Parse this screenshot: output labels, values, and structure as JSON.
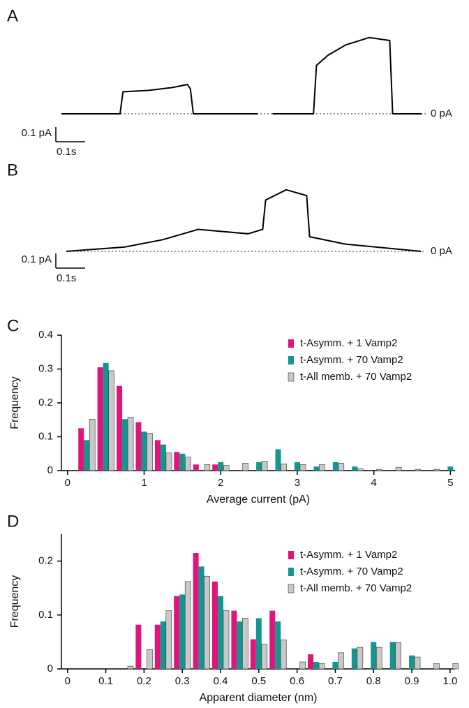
{
  "chart_data": [
    {
      "type": "line",
      "panel": "A",
      "x": [
        0,
        0.2,
        0.21,
        0.3,
        0.38,
        0.43,
        0.44,
        0.45,
        0.67,
        0.7,
        0.72,
        0.86,
        0.87,
        0.91,
        0.97,
        1.05,
        1.12,
        1.13,
        1.23
      ],
      "values": [
        0,
        0,
        0.15,
        0.16,
        0.18,
        0.2,
        0.17,
        0,
        0,
        null,
        0,
        0,
        0.33,
        0.4,
        0.47,
        0.52,
        0.5,
        0,
        0
      ],
      "color": "#000000",
      "baseline": {
        "value": 0,
        "label": "0 pA"
      },
      "scalebar": {
        "x": 0.1,
        "x_label": "0.1s",
        "y": 0.1,
        "y_label": "0.1 pA"
      }
    },
    {
      "type": "line",
      "panel": "B",
      "x": [
        0,
        0.2,
        0.33,
        0.45,
        0.62,
        0.67,
        0.68,
        0.75,
        0.82,
        0.83,
        0.95,
        1.21
      ],
      "values": [
        0,
        0.03,
        0.08,
        0.15,
        0.12,
        0.15,
        0.35,
        0.42,
        0.38,
        0.1,
        0.05,
        0
      ],
      "color": "#000000",
      "baseline": {
        "value": 0,
        "label": "0 pA"
      },
      "scalebar": {
        "x": 0.1,
        "x_label": "0.1s",
        "y": 0.1,
        "y_label": "0.1 pA"
      }
    },
    {
      "type": "bar",
      "panel": "C",
      "x_label": "Average current (pA)",
      "y_label": "Frequency",
      "x": [
        0.25,
        0.5,
        0.75,
        1.0,
        1.25,
        1.5,
        1.75,
        2.0,
        2.25,
        2.5,
        2.75,
        3.0,
        3.25,
        3.5,
        3.75,
        4.0,
        4.25,
        4.5,
        4.75,
        5.0
      ],
      "series": [
        {
          "name": "t-Asymm. + 1 Vamp2",
          "color": "#e0157a",
          "values": [
            0.125,
            0.305,
            0.25,
            0.143,
            0.09,
            0.055,
            0.018,
            0.018,
            0,
            0,
            0,
            0,
            0,
            0,
            0,
            0,
            0,
            0,
            0,
            0
          ]
        },
        {
          "name": "t-Asymm. + 70 Vamp2",
          "color": "#14958f",
          "values": [
            0.09,
            0.318,
            0.152,
            0.115,
            0.077,
            0.05,
            0,
            0.025,
            0,
            0.025,
            0.063,
            0.025,
            0.012,
            0.025,
            0.012,
            0,
            0,
            0,
            0,
            0.012
          ]
        },
        {
          "name": "t-All memb. + 70 Vamp2",
          "color": "#c8c8c8",
          "values": [
            0.152,
            0.295,
            0.158,
            0.11,
            0.052,
            0.04,
            0.018,
            0.015,
            0.022,
            0.028,
            0.02,
            0.018,
            0.018,
            0.022,
            0.006,
            0.004,
            0.01,
            0.004,
            0.004,
            0
          ]
        }
      ],
      "xlim": [
        -0.08,
        5.06
      ],
      "xticks": [
        0,
        1,
        2,
        3,
        4,
        5
      ],
      "ylim": [
        0,
        0.4
      ],
      "yticks": [
        0,
        0.1,
        0.2,
        0.3,
        0.4
      ],
      "legend": "upper right"
    },
    {
      "type": "bar",
      "panel": "D",
      "x_label": "Apparent diameter (nm)",
      "y_label": "Frequency",
      "x": [
        0.15,
        0.2,
        0.25,
        0.3,
        0.35,
        0.4,
        0.45,
        0.5,
        0.55,
        0.6,
        0.65,
        0.7,
        0.75,
        0.8,
        0.85,
        0.9,
        0.95,
        1.0
      ],
      "series": [
        {
          "name": "t-Asymm. + 1 Vamp2",
          "color": "#e0157a",
          "values": [
            0,
            0.082,
            0.082,
            0.135,
            0.215,
            0.162,
            0.108,
            0.055,
            0.108,
            0,
            0.027,
            0,
            0,
            0,
            0,
            0,
            0,
            0
          ]
        },
        {
          "name": "t-Asymm. + 70 Vamp2",
          "color": "#14958f",
          "values": [
            0,
            0,
            0.088,
            0.138,
            0.19,
            0.135,
            0.088,
            0.094,
            0.088,
            0,
            0.013,
            0.013,
            0.038,
            0.05,
            0.05,
            0.025,
            0,
            0
          ]
        },
        {
          "name": "t-All memb. + 70 Vamp2",
          "color": "#c8c8c8",
          "values": [
            0.005,
            0.036,
            0.108,
            0.162,
            0.172,
            0.108,
            0.094,
            0.046,
            0.054,
            0.013,
            0.01,
            0.03,
            0.04,
            0.04,
            0.049,
            0.022,
            0.01,
            0.01
          ]
        }
      ],
      "xlim": [
        -0.016,
        1.013
      ],
      "xticks": [
        0,
        0.1,
        0.2,
        0.3,
        0.4,
        0.5,
        0.6,
        0.7,
        0.8,
        0.9,
        {
          "value": 1,
          "label": "1.0"
        }
      ],
      "ylim": [
        0,
        0.25
      ],
      "yticks": [
        0,
        0.1,
        0.2
      ],
      "legend": "upper right"
    }
  ]
}
